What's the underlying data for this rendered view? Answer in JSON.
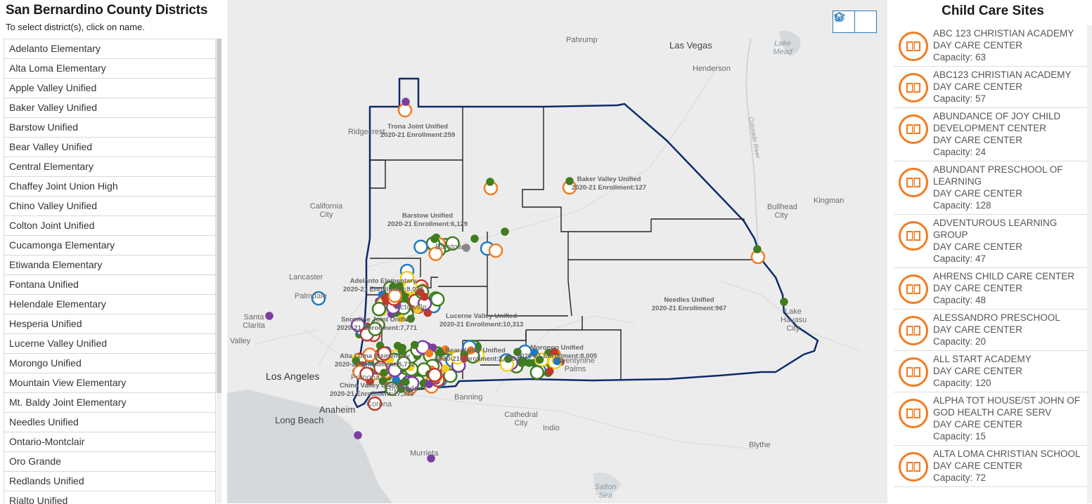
{
  "left": {
    "title": "San Bernardino County Districts",
    "subtitle": "To select district(s), click on name.",
    "districts": [
      "Adelanto Elementary",
      "Alta Loma Elementary",
      "Apple Valley Unified",
      "Baker Valley Unified",
      "Barstow Unified",
      "Bear Valley Unified",
      "Central Elementary",
      "Chaffey Joint Union High",
      "Chino Valley Unified",
      "Colton Joint Unified",
      "Cucamonga Elementary",
      "Etiwanda Elementary",
      "Fontana Unified",
      "Helendale Elementary",
      "Hesperia Unified",
      "Lucerne Valley Unified",
      "Morongo Unified",
      "Mountain View Elementary",
      "Mt. Baldy Joint Elementary",
      "Needles Unified",
      "Ontario-Montclair",
      "Oro Grande",
      "Redlands Unified",
      "Rialto Unified"
    ]
  },
  "map": {
    "places": {
      "las_vegas": "Las Vegas",
      "pahrump": "Pahrump",
      "henderson": "Henderson",
      "lake_mead": "Lake Mead",
      "bullhead": "Bullhead City",
      "kingman": "Kingman",
      "lake_havasu": "Lake Havasu City",
      "ridgecrest": "Ridgecrest",
      "california_city": "California City",
      "lancaster": "Lancaster",
      "palmdale": "Palmdale",
      "santa_clarita": "Santa Clarita",
      "valley": "Valley",
      "los_angeles": "Los Angeles",
      "anaheim": "Anaheim",
      "long_beach": "Long Beach",
      "barstow": "Barstow",
      "victorville": "Victorville",
      "pomona": "Pomona",
      "riverside": "Riverside",
      "corona": "Corona",
      "banning": "Banning",
      "cathedral_city": "Cathedral City",
      "indio": "Indio",
      "blythe": "Blythe",
      "murrieta": "Murrieta",
      "salton_sea": "Salton Sea",
      "twentynine_palms": "Twentynine Palms",
      "colorado_river": "Colorado River"
    },
    "districts": {
      "trona": {
        "name": "Trona Joint Unified",
        "enroll": "2020-21 Enrollment:259"
      },
      "baker": {
        "name": "Baker Valley Unified",
        "enroll": "2020-21 Enrollment:127"
      },
      "barstow": {
        "name": "Barstow Unified",
        "enroll": "2020-21 Enrollment:6,129"
      },
      "adelanto": {
        "name": "Adelanto Elementary",
        "enroll": "2020-21 Enrollment:8,023"
      },
      "needles": {
        "name": "Needles Unified",
        "enroll": "2020-21 Enrollment:967"
      },
      "lucerne": {
        "name": "Lucerne Valley Unified",
        "enroll": "2020-21 Enrollment:10,313"
      },
      "snowline": {
        "name": "Snowline Joint Unified",
        "enroll": "2020-21 Enrollment:7,771"
      },
      "bear": {
        "name": "Bear Valley Unified",
        "enroll": "2020-21 Enrollment:2,238"
      },
      "morongo": {
        "name": "Morongo Unified",
        "enroll": "2020-21 Enrollment:8,005"
      },
      "alta_loma": {
        "name": "Alta Loma Elementary",
        "enroll": "2020-21 Enrollment:5,712"
      },
      "chino": {
        "name": "Chino Valley Unified",
        "enroll": "2020-21 Enrollment:27,333"
      }
    },
    "buttons": {
      "home_icon": "home-icon",
      "layers_icon": "layers-icon"
    },
    "colors": {
      "county_boundary": "#0d2a6b",
      "district_lines": "#222222",
      "marker_orange": "#f47b20",
      "marker_green": "#3f7d1e",
      "marker_purple": "#7a3fa0",
      "marker_yellow": "#f2cf1f",
      "marker_blue": "#1f7ac0",
      "marker_red": "#c0392b"
    }
  },
  "right": {
    "title": "Child Care Sites",
    "sites": [
      {
        "name": "ABC 123 CHRISTIAN ACADEMY",
        "type": "DAY CARE CENTER",
        "capacity": "Capacity: 63"
      },
      {
        "name": "ABC123 CHRISTIAN ACADEMY",
        "type": "DAY CARE CENTER",
        "capacity": "Capacity: 57"
      },
      {
        "name": "ABUNDANCE OF JOY CHILD DEVELOPMENT CENTER",
        "type": "DAY CARE CENTER",
        "capacity": "Capacity: 24"
      },
      {
        "name": "ABUNDANT PRESCHOOL OF LEARNING",
        "type": "DAY CARE CENTER",
        "capacity": "Capacity: 128"
      },
      {
        "name": "ADVENTUROUS LEARNING GROUP",
        "type": "DAY CARE CENTER",
        "capacity": "Capacity: 47"
      },
      {
        "name": "AHRENS CHILD CARE CENTER",
        "type": "DAY CARE CENTER",
        "capacity": "Capacity: 48"
      },
      {
        "name": "ALESSANDRO PRESCHOOL",
        "type": "DAY CARE CENTER",
        "capacity": "Capacity: 20"
      },
      {
        "name": "ALL START ACADEMY",
        "type": "DAY CARE CENTER",
        "capacity": "Capacity: 120"
      },
      {
        "name": "ALPHA TOT HOUSE/ST JOHN OF GOD HEALTH CARE SERV",
        "type": "DAY CARE CENTER",
        "capacity": "Capacity: 15"
      },
      {
        "name": "ALTA LOMA CHRISTIAN SCHOOL",
        "type": "DAY CARE CENTER",
        "capacity": "Capacity: 72"
      }
    ],
    "icon": "book-icon"
  }
}
